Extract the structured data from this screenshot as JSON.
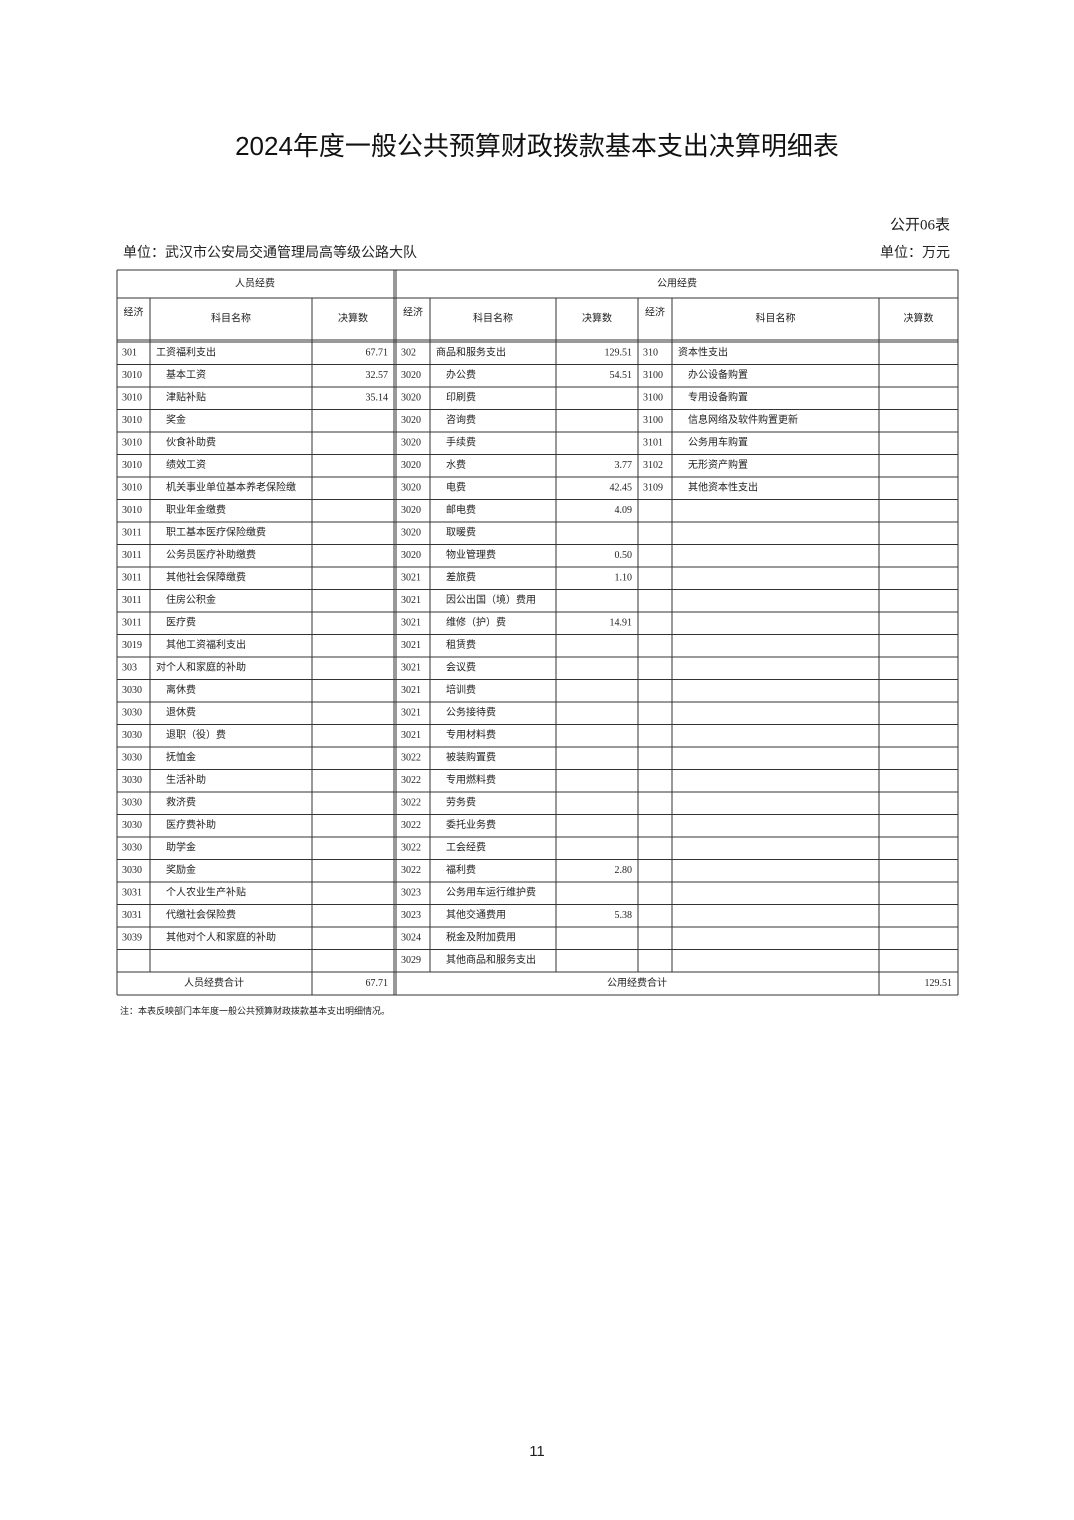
{
  "header": {
    "title": "2024年度一般公共预算财政拨款基本支出决算明细表",
    "form_no": "公开06表",
    "unit_org": "单位：武汉市公安局交通管理局高等级公路大队",
    "unit_money": "单位：万元"
  },
  "table": {
    "groups": [
      "人员经费",
      "公用经费"
    ],
    "columns": [
      "经济",
      "科目名称",
      "决算数",
      "经济",
      "科目名称",
      "决算数",
      "经济",
      "科目名称",
      "决算数"
    ],
    "rows": [
      [
        "301",
        "工资福利支出",
        "67.71",
        "302",
        "商品和服务支出",
        "129.51",
        "310",
        "资本性支出",
        null
      ],
      [
        "3010",
        "基本工资",
        "32.57",
        "3020",
        "办公费",
        "54.51",
        "3100",
        "办公设备购置",
        null
      ],
      [
        "3010",
        "津贴补贴",
        "35.14",
        "3020",
        "印刷费",
        null,
        "3100",
        "专用设备购置",
        null
      ],
      [
        "3010",
        "奖金",
        null,
        "3020",
        "咨询费",
        null,
        "3100",
        "信息网络及软件购置更新",
        null
      ],
      [
        "3010",
        "伙食补助费",
        null,
        "3020",
        "手续费",
        null,
        "3101",
        "公务用车购置",
        null
      ],
      [
        "3010",
        "绩效工资",
        null,
        "3020",
        "水费",
        "3.77",
        "3102",
        "无形资产购置",
        null
      ],
      [
        "3010",
        "机关事业单位基本养老保险缴",
        null,
        "3020",
        "电费",
        "42.45",
        "3109",
        "其他资本性支出",
        null
      ],
      [
        "3010",
        "职业年金缴费",
        null,
        "3020",
        "邮电费",
        "4.09",
        null,
        null,
        null
      ],
      [
        "3011",
        "职工基本医疗保险缴费",
        null,
        "3020",
        "取暖费",
        null,
        null,
        null,
        null
      ],
      [
        "3011",
        "公务员医疗补助缴费",
        null,
        "3020",
        "物业管理费",
        "0.50",
        null,
        null,
        null
      ],
      [
        "3011",
        "其他社会保障缴费",
        null,
        "3021",
        "差旅费",
        "1.10",
        null,
        null,
        null
      ],
      [
        "3011",
        "住房公积金",
        null,
        "3021",
        "因公出国（境）费用",
        null,
        null,
        null,
        null
      ],
      [
        "3011",
        "医疗费",
        null,
        "3021",
        "维修（护）费",
        "14.91",
        null,
        null,
        null
      ],
      [
        "3019",
        "其他工资福利支出",
        null,
        "3021",
        "租赁费",
        null,
        null,
        null,
        null
      ],
      [
        "303",
        "对个人和家庭的补助",
        null,
        "3021",
        "会议费",
        null,
        null,
        null,
        null
      ],
      [
        "3030",
        "离休费",
        null,
        "3021",
        "培训费",
        null,
        null,
        null,
        null
      ],
      [
        "3030",
        "退休费",
        null,
        "3021",
        "公务接待费",
        null,
        null,
        null,
        null
      ],
      [
        "3030",
        "退职（役）费",
        null,
        "3021",
        "专用材料费",
        null,
        null,
        null,
        null
      ],
      [
        "3030",
        "抚恤金",
        null,
        "3022",
        "被装购置费",
        null,
        null,
        null,
        null
      ],
      [
        "3030",
        "生活补助",
        null,
        "3022",
        "专用燃料费",
        null,
        null,
        null,
        null
      ],
      [
        "3030",
        "救济费",
        null,
        "3022",
        "劳务费",
        null,
        null,
        null,
        null
      ],
      [
        "3030",
        "医疗费补助",
        null,
        "3022",
        "委托业务费",
        null,
        null,
        null,
        null
      ],
      [
        "3030",
        "助学金",
        null,
        "3022",
        "工会经费",
        null,
        null,
        null,
        null
      ],
      [
        "3030",
        "奖励金",
        null,
        "3022",
        "福利费",
        "2.80",
        null,
        null,
        null
      ],
      [
        "3031",
        "个人农业生产补贴",
        null,
        "3023",
        "公务用车运行维护费",
        null,
        null,
        null,
        null
      ],
      [
        "3031",
        "代缴社会保险费",
        null,
        "3023",
        "其他交通费用",
        "5.38",
        null,
        null,
        null
      ],
      [
        "3039",
        "其他对个人和家庭的补助",
        null,
        "3024",
        "税金及附加费用",
        null,
        null,
        null,
        null
      ],
      [
        null,
        null,
        null,
        "3029",
        "其他商品和服务支出",
        null,
        null,
        null,
        null
      ]
    ],
    "totals": [
      "人员经费合计",
      "67.71",
      "公用经费合计",
      "129.51"
    ]
  },
  "note": "注：本表反映部门本年度一般公共预算财政拨款基本支出明细情况。",
  "page_number": "11"
}
